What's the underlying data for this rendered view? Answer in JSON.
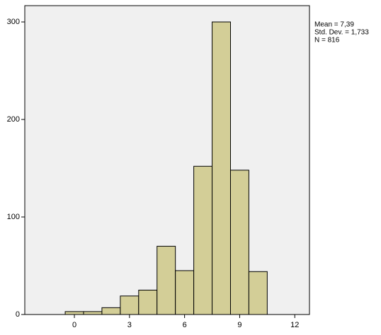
{
  "chart_data": {
    "type": "histogram",
    "bins": [
      -0.5,
      0.5,
      1.5,
      2.5,
      3.5,
      4.5,
      5.5,
      6.5,
      7.5,
      8.5,
      9.5,
      10.5
    ],
    "values": [
      3,
      3,
      7,
      19,
      25,
      70,
      45,
      152,
      300,
      148,
      44
    ],
    "color": "#d3ce97",
    "xlim": [
      -2.7,
      12.8
    ],
    "xticks": [
      0,
      3,
      6,
      9,
      12
    ],
    "ylim": [
      0,
      316.7
    ],
    "yticks": [
      0,
      100,
      200,
      300
    ],
    "annotations": [
      "Mean = 7,39",
      "Std. Dev. = 1,733",
      "N = 816"
    ]
  }
}
